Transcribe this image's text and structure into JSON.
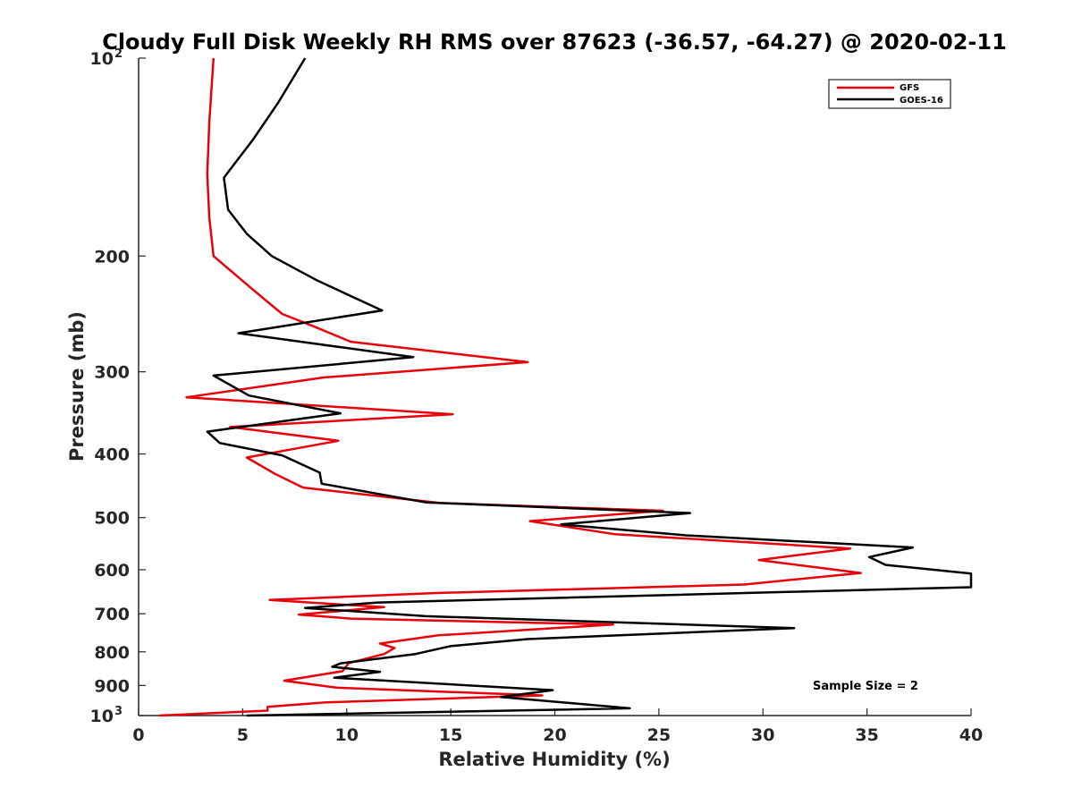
{
  "chart_data": {
    "type": "line",
    "title": "Cloudy Full Disk Weekly RH RMS over 87623 (-36.57, -64.27) @ 2020-02-11",
    "xlabel": "Relative Humidity (%)",
    "ylabel": "Pressure (mb)",
    "xlim": [
      0,
      40
    ],
    "ylim": [
      100,
      1000
    ],
    "y_scale": "log",
    "y_reversed": true,
    "grid": false,
    "legend_position": "top-right",
    "annotation": "Sample Size = 2",
    "x_ticks": [
      {
        "value": 0,
        "label": "0"
      },
      {
        "value": 5,
        "label": "5"
      },
      {
        "value": 10,
        "label": "10"
      },
      {
        "value": 15,
        "label": "15"
      },
      {
        "value": 20,
        "label": "20"
      },
      {
        "value": 25,
        "label": "25"
      },
      {
        "value": 30,
        "label": "30"
      },
      {
        "value": 35,
        "label": "35"
      },
      {
        "value": 40,
        "label": "40"
      }
    ],
    "y_ticks": [
      {
        "value": 100,
        "label": "10",
        "sup": "2"
      },
      {
        "value": 200,
        "label": "200"
      },
      {
        "value": 300,
        "label": "300"
      },
      {
        "value": 400,
        "label": "400"
      },
      {
        "value": 500,
        "label": "500"
      },
      {
        "value": 600,
        "label": "600"
      },
      {
        "value": 700,
        "label": "700"
      },
      {
        "value": 800,
        "label": "800"
      },
      {
        "value": 900,
        "label": "900"
      },
      {
        "value": 1000,
        "label": "10",
        "sup": "3"
      }
    ],
    "series": [
      {
        "name": "GFS",
        "color": "#e8000b",
        "points": [
          [
            3.6,
            100
          ],
          [
            3.4,
            125
          ],
          [
            3.3,
            150
          ],
          [
            3.4,
            175
          ],
          [
            3.6,
            200
          ],
          [
            5.5,
            225
          ],
          [
            6.9,
            245
          ],
          [
            8.3,
            255
          ],
          [
            10.2,
            270
          ],
          [
            18.7,
            290
          ],
          [
            8.9,
            306
          ],
          [
            2.3,
            328
          ],
          [
            15.1,
            348
          ],
          [
            4.4,
            364
          ],
          [
            9.6,
            382
          ],
          [
            5.2,
            405
          ],
          [
            6.5,
            428
          ],
          [
            7.9,
            450
          ],
          [
            14.5,
            475
          ],
          [
            25.2,
            488
          ],
          [
            18.8,
            506
          ],
          [
            22.9,
            530
          ],
          [
            34.2,
            557
          ],
          [
            29.8,
            580
          ],
          [
            34.7,
            607
          ],
          [
            29.1,
            632
          ],
          [
            14.3,
            651
          ],
          [
            6.3,
            667
          ],
          [
            9.8,
            678
          ],
          [
            11.8,
            684
          ],
          [
            7.7,
            702
          ],
          [
            10.2,
            712
          ],
          [
            22.8,
            727
          ],
          [
            14.4,
            755
          ],
          [
            11.6,
            777
          ],
          [
            12.3,
            789
          ],
          [
            11.8,
            806
          ],
          [
            10.1,
            832
          ],
          [
            9.8,
            856
          ],
          [
            7.0,
            885
          ],
          [
            9.5,
            907
          ],
          [
            19.4,
            932
          ],
          [
            9.0,
            955
          ],
          [
            6.2,
            970
          ],
          [
            6.2,
            983
          ],
          [
            1.0,
            1000
          ]
        ]
      },
      {
        "name": "GOES-16",
        "color": "#000000",
        "points": [
          [
            8.0,
            100
          ],
          [
            6.7,
            117
          ],
          [
            5.5,
            133
          ],
          [
            4.1,
            152
          ],
          [
            4.3,
            170
          ],
          [
            5.2,
            185
          ],
          [
            6.4,
            200
          ],
          [
            8.6,
            218
          ],
          [
            11.7,
            242
          ],
          [
            4.8,
            262
          ],
          [
            13.2,
            285
          ],
          [
            3.6,
            304
          ],
          [
            5.3,
            326
          ],
          [
            9.7,
            347
          ],
          [
            3.3,
            370
          ],
          [
            3.9,
            385
          ],
          [
            6.9,
            402
          ],
          [
            8.7,
            427
          ],
          [
            8.8,
            444
          ],
          [
            13.8,
            474
          ],
          [
            26.5,
            492
          ],
          [
            20.3,
            512
          ],
          [
            26.3,
            532
          ],
          [
            37.2,
            555
          ],
          [
            35.1,
            574
          ],
          [
            35.9,
            590
          ],
          [
            40.0,
            608
          ],
          [
            40.0,
            638
          ],
          [
            11.5,
            673
          ],
          [
            8.0,
            686
          ],
          [
            13.8,
            706
          ],
          [
            31.5,
            736
          ],
          [
            18.7,
            765
          ],
          [
            15.0,
            784
          ],
          [
            13.3,
            806
          ],
          [
            9.7,
            833
          ],
          [
            9.3,
            843
          ],
          [
            11.6,
            858
          ],
          [
            9.4,
            876
          ],
          [
            19.9,
            915
          ],
          [
            17.4,
            937
          ],
          [
            23.6,
            975
          ],
          [
            5.2,
            1000
          ]
        ]
      }
    ]
  }
}
